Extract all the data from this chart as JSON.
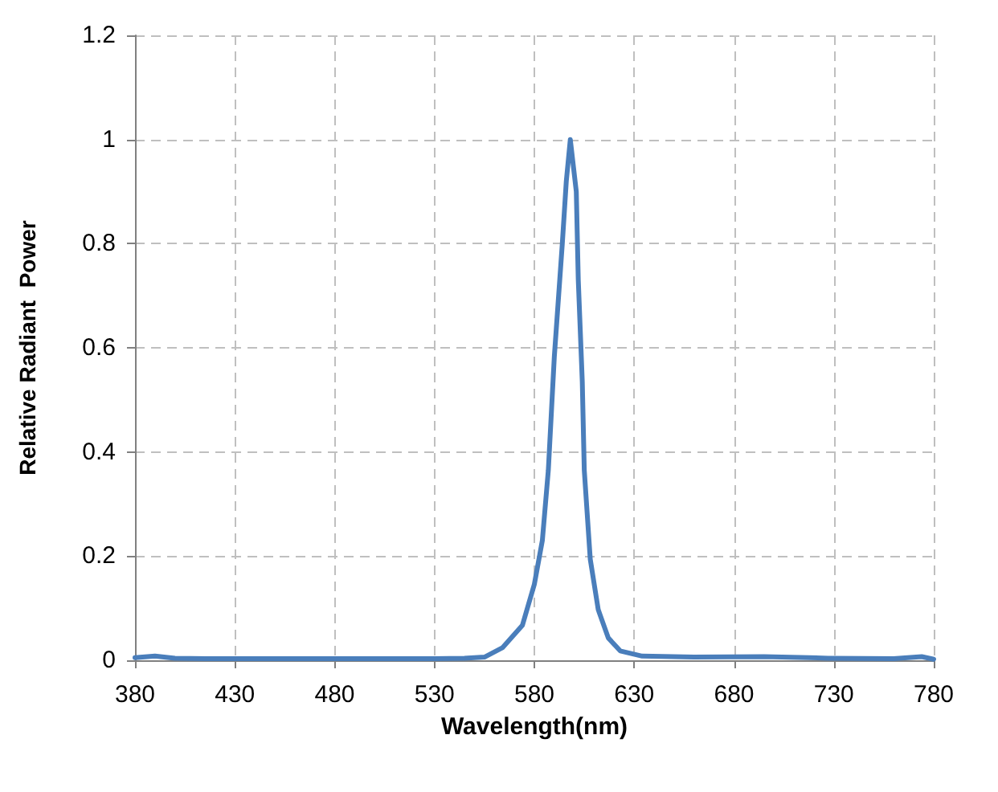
{
  "chart_data": {
    "type": "line",
    "xlabel": "Wavelength(nm)",
    "ylabel": "Relative Radiant  Power",
    "x": [
      380,
      390,
      400,
      420,
      450,
      500,
      530,
      545,
      555,
      564,
      574,
      580,
      584,
      587,
      590,
      594,
      596,
      598,
      601,
      602,
      604,
      605,
      608,
      612,
      617,
      623,
      634,
      660,
      695,
      727,
      760,
      774,
      780
    ],
    "series": [
      {
        "color": "#4a7ebb",
        "values": [
          0.005,
          0.008,
          0.004,
          0.003,
          0.003,
          0.003,
          0.003,
          0.004,
          0.006,
          0.024,
          0.067,
          0.146,
          0.23,
          0.365,
          0.583,
          0.8,
          0.92,
          1.0,
          0.9,
          0.73,
          0.535,
          0.365,
          0.194,
          0.097,
          0.043,
          0.018,
          0.008,
          0.006,
          0.007,
          0.004,
          0.003,
          0.007,
          0.002
        ]
      }
    ],
    "xlim": [
      380,
      780
    ],
    "xticks": [
      380,
      430,
      480,
      530,
      580,
      630,
      680,
      730,
      780
    ],
    "ylim": [
      0,
      1.2
    ],
    "yticks": [
      0,
      0.2,
      0.4,
      0.6,
      0.8,
      1,
      1.2
    ],
    "grid": true,
    "marker": "none",
    "line_style": "solid"
  }
}
